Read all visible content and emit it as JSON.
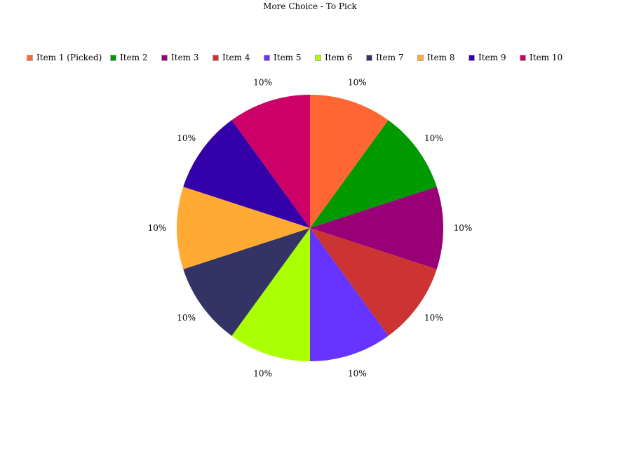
{
  "chart_data": {
    "type": "pie",
    "title": "More Choice - To Pick",
    "legend_position": "top",
    "start_angle": "top, clockwise",
    "slices": [
      {
        "label": "Item 1 (Picked)",
        "value": 10,
        "data_label": "10%",
        "color": "#FF6633"
      },
      {
        "label": "Item 2",
        "value": 10,
        "data_label": "10%",
        "color": "#009900"
      },
      {
        "label": "Item 3",
        "value": 10,
        "data_label": "10%",
        "color": "#990077"
      },
      {
        "label": "Item 4",
        "value": 10,
        "data_label": "10%",
        "color": "#CC3333"
      },
      {
        "label": "Item 5",
        "value": 10,
        "data_label": "10%",
        "color": "#6633FF"
      },
      {
        "label": "Item 6",
        "value": 10,
        "data_label": "10%",
        "color": "#AAFF00"
      },
      {
        "label": "Item 7",
        "value": 10,
        "data_label": "10%",
        "color": "#333366"
      },
      {
        "label": "Item 8",
        "value": 10,
        "data_label": "10%",
        "color": "#FFAA33"
      },
      {
        "label": "Item 9",
        "value": 10,
        "data_label": "10%",
        "color": "#3300AA"
      },
      {
        "label": "Item 10",
        "value": 10,
        "data_label": "10%",
        "color": "#CC0066"
      }
    ]
  }
}
